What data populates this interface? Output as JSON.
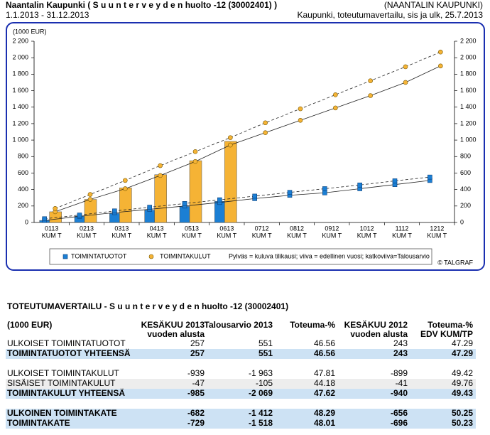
{
  "header": {
    "title": "Naantalin Kaupunki ( S u u n t e r v e y d e n huolto -12 (30002401) )",
    "org": "(NAANTALIN KAUPUNKI)",
    "period": "1.1.2013 - 31.12.2013",
    "report": "Kaupunki, toteutumavertailu, sis ja ulk, 25.7.2013"
  },
  "chart_data": {
    "type": "bar",
    "y_label": "(1000 EUR)",
    "categories": [
      [
        "0113",
        "KUM T"
      ],
      [
        "0213",
        "KUM T"
      ],
      [
        "0313",
        "KUM T"
      ],
      [
        "0413",
        "KUM T"
      ],
      [
        "0513",
        "KUM T"
      ],
      [
        "0613",
        "KUM T"
      ],
      [
        "0712",
        "KUM T"
      ],
      [
        "0812",
        "KUM T"
      ],
      [
        "0912",
        "KUM T"
      ],
      [
        "1012",
        "KUM T"
      ],
      [
        "1112",
        "KUM T"
      ],
      [
        "1212",
        "KUM T"
      ]
    ],
    "ylim": [
      0,
      2200
    ],
    "yticks": [
      0,
      200,
      400,
      600,
      800,
      {
        "value": 1000,
        "label": "1 000"
      },
      {
        "value": 1200,
        "label": "1 200"
      },
      {
        "value": 1400,
        "label": "1 400"
      },
      {
        "value": 1600,
        "label": "1 600"
      },
      {
        "value": 1800,
        "label": "1 800"
      },
      {
        "value": 2000,
        "label": "2 000"
      },
      {
        "value": 2200,
        "label": "2 200"
      }
    ],
    "y2lim": [
      0,
      2200
    ],
    "y2ticks": [
      0,
      200,
      400,
      600,
      800,
      {
        "value": 1000,
        "label": "1 000"
      },
      {
        "value": 1200,
        "label": "1 200"
      },
      {
        "value": 1400,
        "label": "1 400"
      },
      {
        "value": 1600,
        "label": "1 600"
      },
      {
        "value": 1800,
        "label": "1 800"
      },
      {
        "value": 2000,
        "label": "2 000"
      },
      {
        "value": 2200,
        "label": "2 200"
      }
    ],
    "series": [
      {
        "name": "TOIMINTATUOTOT",
        "color": "#1b7fd4",
        "marker": "square",
        "values": [
          25,
          75,
          110,
          150,
          195,
          257,
          null,
          null,
          null,
          null,
          null,
          null
        ],
        "previous_year": [
          25,
          75,
          120,
          160,
          200,
          243,
          290,
          330,
          360,
          410,
          460,
          510
        ],
        "budget": [
          45,
          90,
          140,
          185,
          230,
          275,
          320,
          365,
          410,
          455,
          505,
          551
        ]
      },
      {
        "name": "TOIMINTAKULUT",
        "color": "#f5b335",
        "marker": "circle",
        "values": [
          130,
          280,
          420,
          580,
          750,
          985,
          null,
          null,
          null,
          null,
          null,
          null
        ],
        "previous_year": [
          130,
          280,
          410,
          570,
          740,
          940,
          1090,
          1240,
          1390,
          1540,
          1700,
          1900
        ],
        "budget": [
          170,
          340,
          510,
          690,
          860,
          1030,
          1210,
          1380,
          1550,
          1720,
          1890,
          2069
        ]
      }
    ],
    "note": "Pylväs = kuluva tilikausi; viiva = edellinen vuosi; katkoviiva=Talousarvio",
    "credit": "© TALGRAF"
  },
  "table": {
    "title": "TOTEUTUMAVERTAILU - S u u n t e r v e y d e n huolto -12 (30002401)",
    "columns": [
      [
        "(1000 EUR)"
      ],
      [
        "KESÄKUU 2013",
        "vuoden alusta"
      ],
      [
        "Talousarvio 2013"
      ],
      [
        "Toteuma-%"
      ],
      [
        "KESÄKUU 2012",
        "vuoden alusta"
      ],
      [
        "Toteuma-%",
        "EDV KUM/TP"
      ]
    ],
    "groups": [
      [
        {
          "style": "plain",
          "cells": [
            "ULKOISET TOIMINTATUOTOT",
            "257",
            "551",
            "46.56",
            "243",
            "47.29"
          ]
        },
        {
          "style": "total",
          "cells": [
            "TOIMINTATUOTOT YHTEENSÄ",
            "257",
            "551",
            "46.56",
            "243",
            "47.29"
          ]
        }
      ],
      [
        {
          "style": "plain",
          "cells": [
            "ULKOISET TOIMINTAKULUT",
            "-939",
            "-1 963",
            "47.81",
            "-899",
            "49.42"
          ]
        },
        {
          "style": "shaded",
          "cells": [
            "SISÄISET TOIMINTAKULUT",
            "-47",
            "-105",
            "44.18",
            "-41",
            "49.76"
          ]
        },
        {
          "style": "total",
          "cells": [
            "TOIMINTAKULUT YHTEENSÄ",
            "-985",
            "-2 069",
            "47.62",
            "-940",
            "49.43"
          ]
        }
      ],
      [
        {
          "style": "total",
          "cells": [
            "ULKOINEN TOIMINTAKATE",
            "-682",
            "-1 412",
            "48.29",
            "-656",
            "50.25"
          ]
        },
        {
          "style": "total",
          "cells": [
            "TOIMINTAKATE",
            "-729",
            "-1 518",
            "48.01",
            "-696",
            "50.23"
          ]
        }
      ]
    ]
  }
}
